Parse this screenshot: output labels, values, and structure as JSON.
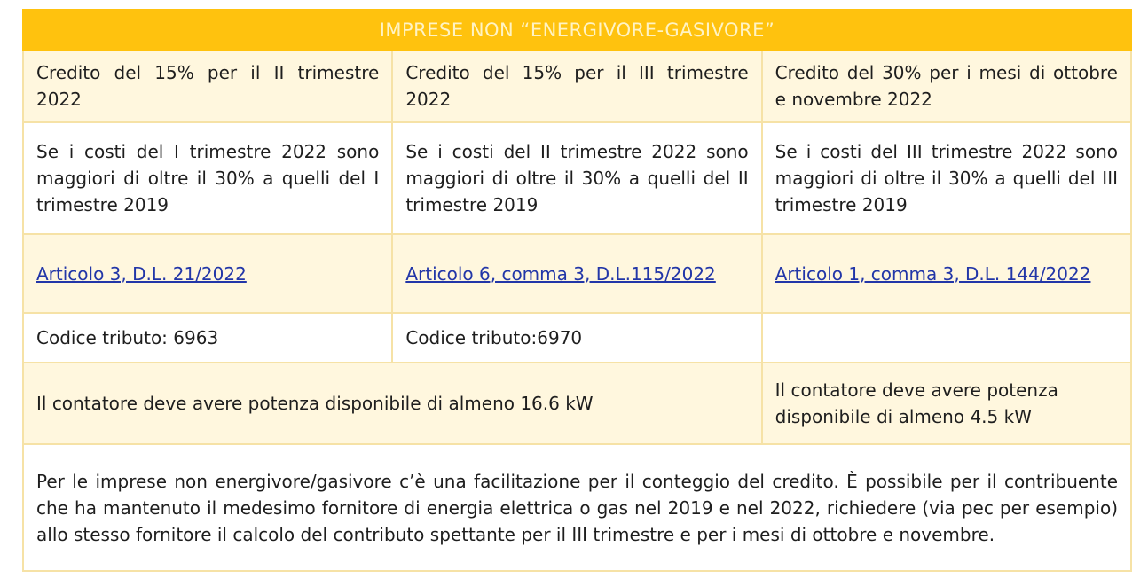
{
  "title": "IMPRESE NON “ENERGIVORE-GASIVORE”",
  "columns": [
    {
      "credit": "Credito del 15% per il II trimestre 2022",
      "condition": "Se i costi del I trimestre 2022 sono maggiori di oltre il 30% a quelli del I trimestre 2019",
      "law_link": "Articolo 3, D.L. 21/2022",
      "tax_code": "Codice tributo: 6963"
    },
    {
      "credit": "Credito del 15% per il III trimestre 2022",
      "condition": "Se i costi del II trimestre 2022 sono maggiori di oltre il 30% a quelli del II trimestre 2019",
      "law_link": "Articolo 6, comma 3, D.L.115/2022",
      "tax_code": "Codice tributo:6970"
    },
    {
      "credit": "Credito del 30% per i mesi di ottobre e novembre 2022",
      "condition": "Se i costi del III trimestre 2022 sono maggiori di oltre il 30% a quelli del III trimestre 2019",
      "law_link": "Articolo 1, comma 3, D.L. 144/2022",
      "tax_code": ""
    }
  ],
  "power_requirement_1": "Il contatore deve avere potenza disponibile di almeno 16.6 kW",
  "power_requirement_2": "Il contatore deve avere potenza disponibile di almeno 4.5 kW",
  "note": "Per le imprese non energivore/gasivore c’è una facilitazione per il conteggio del credito. È possibile per il contribuente che ha mantenuto il medesimo fornitore di energia elettrica o gas nel 2019 e nel 2022, richiedere (via pec per esempio) allo stesso fornitore il calcolo del contributo spettante per il III trimestre e per i mesi di ottobre e novembre.",
  "colors": {
    "header": "#ffc20e",
    "row_tint": "#fff7de",
    "border": "#f6e2a6",
    "link": "#2236a8"
  }
}
